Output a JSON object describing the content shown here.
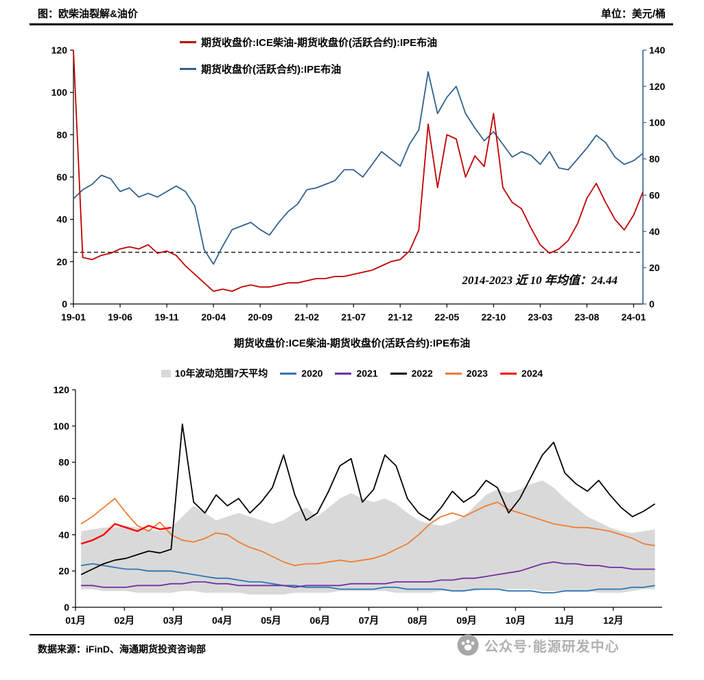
{
  "header": {
    "title": "图：欧柴油裂解&油价",
    "unit": "单位：美元/桶"
  },
  "footer": {
    "source": "数据来源：iFinD、海通期货投资咨询部",
    "watermark": "公众号·能源研发中心"
  },
  "chart_data": [
    {
      "type": "line",
      "title": "欧柴油裂解&油价",
      "unit": "美元/桶",
      "months": [
        "2019-01",
        "2019-02",
        "2019-03",
        "2019-04",
        "2019-05",
        "2019-06",
        "2019-07",
        "2019-08",
        "2019-09",
        "2019-10",
        "2019-11",
        "2019-12",
        "2020-01",
        "2020-02",
        "2020-03",
        "2020-04",
        "2020-05",
        "2020-06",
        "2020-07",
        "2020-08",
        "2020-09",
        "2020-10",
        "2020-11",
        "2020-12",
        "2021-01",
        "2021-02",
        "2021-03",
        "2021-04",
        "2021-05",
        "2021-06",
        "2021-07",
        "2021-08",
        "2021-09",
        "2021-10",
        "2021-11",
        "2021-12",
        "2022-01",
        "2022-02",
        "2022-03",
        "2022-04",
        "2022-05",
        "2022-06",
        "2022-07",
        "2022-08",
        "2022-09",
        "2022-10",
        "2022-11",
        "2022-12",
        "2023-01",
        "2023-02",
        "2023-03",
        "2023-04",
        "2023-05",
        "2023-06",
        "2023-07",
        "2023-08",
        "2023-09",
        "2023-10",
        "2023-11",
        "2023-12",
        "2024-01",
        "2024-02"
      ],
      "xticks": [
        "19-01",
        "19-06",
        "19-11",
        "20-04",
        "20-09",
        "21-02",
        "21-07",
        "21-12",
        "22-05",
        "22-10",
        "23-03",
        "23-08",
        "24-01"
      ],
      "xtick_step": 5,
      "ylim_left": [
        0,
        120
      ],
      "yticks_left": [
        0,
        20,
        40,
        60,
        80,
        100,
        120
      ],
      "ylim_right": [
        0,
        140
      ],
      "yticks_right": [
        0,
        20,
        40,
        60,
        80,
        100,
        120,
        140
      ],
      "series": [
        {
          "name": "期货收盘价:ICE柴油-期货收盘价(活跃合约):IPE布油",
          "axis": "left",
          "color": "#c00000",
          "values": [
            120,
            22,
            21,
            23,
            24,
            26,
            27,
            26,
            28,
            24,
            25,
            23,
            18,
            14,
            10,
            6,
            7,
            6,
            8,
            9,
            8,
            8,
            9,
            10,
            10,
            11,
            12,
            12,
            13,
            13,
            14,
            15,
            16,
            18,
            20,
            21,
            25,
            35,
            85,
            55,
            80,
            78,
            60,
            70,
            65,
            90,
            55,
            48,
            45,
            36,
            28,
            24,
            26,
            30,
            38,
            50,
            57,
            48,
            40,
            35,
            42,
            53
          ]
        },
        {
          "name": "期货收盘价(活跃合约):IPE布油",
          "axis": "right",
          "color": "#31618e",
          "values": [
            58,
            63,
            66,
            71,
            69,
            62,
            64,
            59,
            61,
            59,
            62,
            65,
            62,
            54,
            30,
            22,
            32,
            41,
            43,
            45,
            41,
            38,
            45,
            51,
            55,
            63,
            64,
            66,
            68,
            74,
            74,
            70,
            77,
            84,
            80,
            76,
            88,
            96,
            128,
            105,
            114,
            120,
            105,
            97,
            90,
            95,
            88,
            81,
            84,
            82,
            77,
            84,
            75,
            74,
            80,
            86,
            93,
            89,
            81,
            77,
            79,
            83
          ]
        }
      ],
      "avg_line": {
        "value": 24.44,
        "label": "2014-2023 近 10 年均值：24.44"
      }
    },
    {
      "type": "line-seasonal",
      "title": "期货收盘价:ICE柴油-期货收盘价(活跃合约):IPE布油",
      "x_unit": "week-of-year",
      "xticks": [
        "01月",
        "02月",
        "03月",
        "04月",
        "05月",
        "06月",
        "07月",
        "08月",
        "09月",
        "10月",
        "11月",
        "12月"
      ],
      "ylim": [
        0,
        120
      ],
      "yticks": [
        0,
        20,
        40,
        60,
        80,
        100,
        120
      ],
      "band": {
        "name": "10年波动范围7天平均",
        "color": "#d9d9d9",
        "upper": [
          42,
          43,
          44,
          44,
          45,
          44,
          43,
          42,
          44,
          50,
          56,
          52,
          48,
          50,
          52,
          50,
          48,
          46,
          48,
          52,
          55,
          50,
          55,
          60,
          63,
          60,
          58,
          60,
          57,
          52,
          48,
          46,
          45,
          47,
          50,
          56,
          62,
          65,
          63,
          65,
          68,
          70,
          66,
          60,
          55,
          50,
          47,
          44,
          42,
          41,
          42,
          43
        ],
        "lower": [
          10,
          10,
          9,
          9,
          9,
          8,
          8,
          8,
          8,
          9,
          9,
          8,
          8,
          8,
          8,
          7,
          7,
          7,
          7,
          8,
          8,
          8,
          8,
          9,
          9,
          9,
          9,
          9,
          8,
          8,
          8,
          8,
          9,
          9,
          9,
          9,
          10,
          10,
          10,
          10,
          10,
          9,
          9,
          9,
          9,
          9,
          8,
          8,
          8,
          9,
          10,
          10
        ]
      },
      "series": [
        {
          "name": "2020",
          "color": "#2e75b6",
          "values": [
            23,
            24,
            23,
            22,
            21,
            21,
            20,
            20,
            20,
            19,
            18,
            17,
            16,
            16,
            15,
            14,
            14,
            13,
            12,
            12,
            11,
            11,
            11,
            10,
            10,
            10,
            10,
            11,
            11,
            10,
            10,
            10,
            10,
            9,
            9,
            10,
            10,
            10,
            9,
            9,
            9,
            8,
            8,
            9,
            9,
            9,
            10,
            10,
            10,
            11,
            11,
            12
          ]
        },
        {
          "name": "2021",
          "color": "#7030a0",
          "values": [
            12,
            12,
            11,
            11,
            11,
            12,
            12,
            12,
            13,
            13,
            14,
            14,
            13,
            13,
            12,
            12,
            12,
            12,
            12,
            11,
            12,
            12,
            12,
            12,
            13,
            13,
            13,
            13,
            14,
            14,
            14,
            14,
            15,
            15,
            16,
            16,
            17,
            18,
            19,
            20,
            22,
            24,
            25,
            24,
            24,
            23,
            23,
            22,
            22,
            21,
            21,
            21
          ]
        },
        {
          "name": "2022",
          "color": "#000000",
          "values": [
            18,
            21,
            24,
            26,
            27,
            29,
            31,
            30,
            32,
            101,
            58,
            52,
            62,
            56,
            60,
            52,
            58,
            66,
            84,
            62,
            48,
            52,
            64,
            78,
            82,
            58,
            65,
            84,
            78,
            60,
            52,
            48,
            55,
            64,
            58,
            62,
            70,
            66,
            52,
            60,
            72,
            84,
            91,
            74,
            68,
            64,
            70,
            62,
            55,
            50,
            53,
            57
          ]
        },
        {
          "name": "2023",
          "color": "#ed7d31",
          "values": [
            46,
            50,
            55,
            60,
            52,
            45,
            42,
            47,
            40,
            37,
            36,
            38,
            41,
            40,
            36,
            33,
            31,
            28,
            25,
            23,
            24,
            24,
            25,
            26,
            25,
            26,
            27,
            29,
            32,
            35,
            40,
            46,
            50,
            52,
            50,
            53,
            56,
            58,
            54,
            52,
            50,
            48,
            46,
            45,
            44,
            44,
            43,
            42,
            40,
            38,
            35,
            34
          ]
        },
        {
          "name": "2024",
          "color": "#ff0000",
          "values": [
            35,
            37,
            40,
            46,
            44,
            42,
            45,
            43,
            44
          ]
        }
      ]
    }
  ]
}
